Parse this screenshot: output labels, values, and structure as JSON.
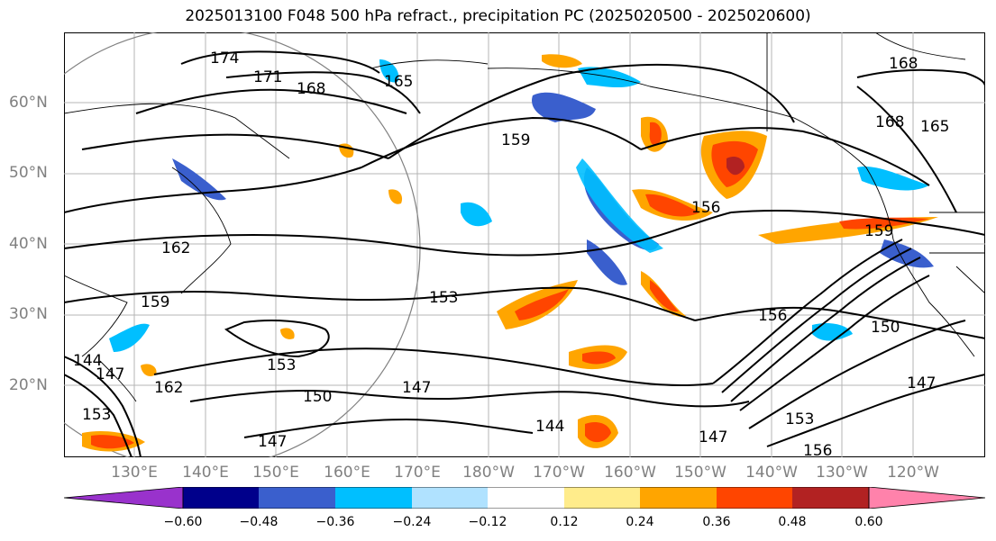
{
  "title": "2025013100 F048 500 hPa refract., precipitation PC (2025020500 - 2025020600)",
  "lat_labels": [
    "60°N",
    "50°N",
    "40°N",
    "30°N",
    "20°N"
  ],
  "lon_labels": [
    "130°E",
    "140°E",
    "150°E",
    "160°E",
    "170°E",
    "180°W",
    "170°W",
    "160°W",
    "150°W",
    "140°W",
    "130°W",
    "120°W"
  ],
  "contour_labels": [
    "174",
    "171",
    "168",
    "165",
    "159",
    "168",
    "165",
    "168",
    "162",
    "156",
    "159",
    "153",
    "159",
    "150",
    "153",
    "147",
    "150",
    "147",
    "162",
    "144",
    "147",
    "156",
    "147",
    "153",
    "156",
    "144",
    "147",
    "153"
  ],
  "colorbar": {
    "ticks": [
      "−0.60",
      "−0.48",
      "−0.36",
      "−0.24",
      "−0.12",
      "0.12",
      "0.24",
      "0.36",
      "0.48",
      "0.60"
    ],
    "colors": [
      "#9932cc",
      "#00008b",
      "#3a5fcd",
      "#00bfff",
      "#b0e2ff",
      "#ffffff",
      "#ffec8b",
      "#ffa500",
      "#ff4500",
      "#b22222",
      "#ff82ab"
    ]
  }
}
